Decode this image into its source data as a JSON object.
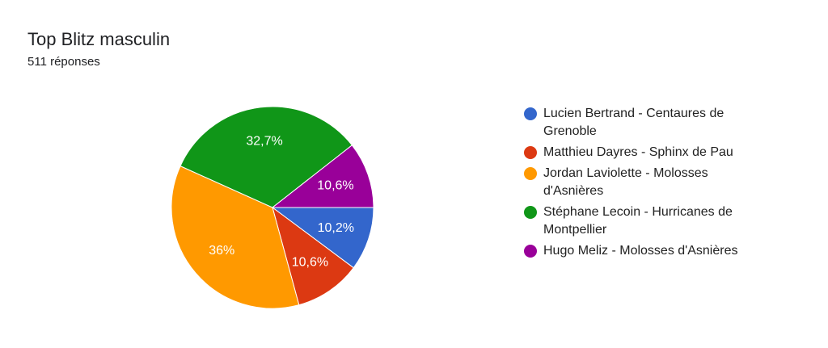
{
  "chart_data": {
    "type": "pie",
    "title": "Top Blitz masculin",
    "subtitle": "511 réponses",
    "categories": [
      "Lucien Bertrand - Centaures de Grenoble",
      "Matthieu Dayres - Sphinx de Pau",
      "Jordan Laviolette - Molosses d'Asnières",
      "Stéphane Lecoin - Hurricanes de Montpellier",
      "Hugo Meliz - Molosses d'Asnières"
    ],
    "values": [
      10.2,
      10.6,
      36,
      32.7,
      10.6
    ],
    "value_labels": [
      "10,2%",
      "10,6%",
      "36%",
      "32,7%",
      "10,6%"
    ],
    "colors": [
      "#3366cc",
      "#dc3912",
      "#ff9900",
      "#109618",
      "#990099"
    ],
    "legend": "right"
  }
}
